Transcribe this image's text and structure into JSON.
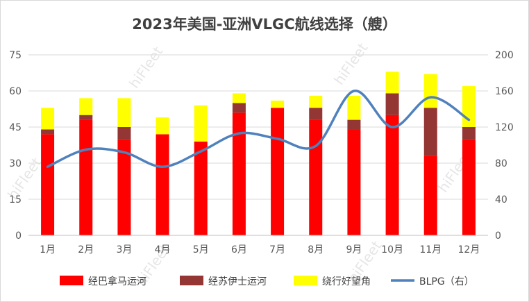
{
  "chart_data": {
    "type": "bar",
    "title": "2023年美国-亚洲VLGC航线选择（艘）",
    "categories": [
      "1月",
      "2月",
      "3月",
      "4月",
      "5月",
      "6月",
      "7月",
      "8月",
      "9月",
      "10月",
      "11月",
      "12月"
    ],
    "series": [
      {
        "name": "经巴拿马运河",
        "type": "bar",
        "stacked": true,
        "axis": "left",
        "color": "#ff0000",
        "values": [
          42,
          48,
          40,
          42,
          39,
          51,
          53,
          48,
          44,
          50,
          33,
          40
        ]
      },
      {
        "name": "经苏伊士运河",
        "type": "bar",
        "stacked": true,
        "axis": "left",
        "color": "#943634",
        "values": [
          2,
          2,
          5,
          0,
          0,
          4,
          0,
          5,
          4,
          9,
          20,
          5
        ]
      },
      {
        "name": "绕行好望角",
        "type": "bar",
        "stacked": true,
        "axis": "left",
        "color": "#ffff00",
        "values": [
          9,
          7,
          12,
          7,
          15,
          4,
          3,
          5,
          10,
          9,
          14,
          17
        ]
      },
      {
        "name": "BLPG（右）",
        "type": "line",
        "axis": "right",
        "color": "#4f81bd",
        "values": [
          76,
          95,
          92,
          76,
          93,
          113,
          107,
          99,
          160,
          120,
          153,
          128
        ]
      }
    ],
    "y_left": {
      "min": 0,
      "max": 75,
      "ticks": [
        0,
        15,
        30,
        45,
        60,
        75
      ]
    },
    "y_right": {
      "min": 0,
      "max": 200,
      "ticks": [
        0,
        40,
        80,
        120,
        160,
        200
      ]
    },
    "grid": true,
    "legend_position": "bottom"
  },
  "watermark": "hiFleet"
}
